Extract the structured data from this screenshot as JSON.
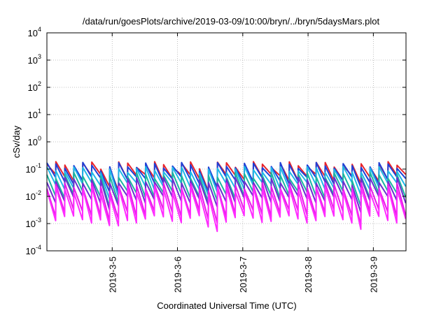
{
  "chart_data": {
    "type": "line",
    "title": "/data/run/goesPlots/archive/2019-03-09/10:00/bryn/../bryn/5daysMars.plot",
    "xlabel": "Coordinated Universal Time (UTC)",
    "ylabel": "cSv/day",
    "yscale": "log",
    "ylim": [
      0.0001,
      10000
    ],
    "xlim": [
      "2019-03-04 00:00",
      "2019-03-09 12:00"
    ],
    "grid": true,
    "legend": "none",
    "y_ticks": [
      {
        "base": "10",
        "exp": "-4",
        "value": 0.0001
      },
      {
        "base": "10",
        "exp": "-3",
        "value": 0.001
      },
      {
        "base": "10",
        "exp": "-2",
        "value": 0.01
      },
      {
        "base": "10",
        "exp": "-1",
        "value": 0.1
      },
      {
        "base": "10",
        "exp": "0",
        "value": 1
      },
      {
        "base": "10",
        "exp": "1",
        "value": 10
      },
      {
        "base": "10",
        "exp": "2",
        "value": 100
      },
      {
        "base": "10",
        "exp": "3",
        "value": 1000
      },
      {
        "base": "10",
        "exp": "4",
        "value": 10000
      }
    ],
    "x_ticks": [
      {
        "label": "2019-3-5",
        "day": 1
      },
      {
        "label": "2019-3-6",
        "day": 2
      },
      {
        "label": "2019-3-7",
        "day": 3
      },
      {
        "label": "2019-3-8",
        "day": 4
      },
      {
        "label": "2019-3-9",
        "day": 5
      }
    ],
    "pattern": {
      "description_note": "",
      "period_hours": 3.3,
      "start_day": 0.0,
      "end_day": 5.5
    },
    "series": [
      {
        "color": "#e8242c",
        "peak": 0.15,
        "trough": 0.05
      },
      {
        "color": "#1f3fd6",
        "peak": 0.14,
        "trough": 0.04
      },
      {
        "color": "#1fb8e8",
        "peak": 0.1,
        "trough": 0.025
      },
      {
        "color": "#1bb6a0",
        "peak": 0.06,
        "trough": 0.012
      },
      {
        "color": "#6a2fd0",
        "peak": 0.04,
        "trough": 0.008
      },
      {
        "color": "#e81ce8",
        "peak": 0.025,
        "trough": 0.0025
      },
      {
        "color": "#ff2bff",
        "peak": 0.018,
        "trough": 0.0015
      }
    ],
    "dip_days": [
      {
        "start": 0.75,
        "end": 1.05
      },
      {
        "start": 2.3,
        "end": 2.55
      },
      {
        "start": 4.6,
        "end": 4.75
      }
    ]
  }
}
